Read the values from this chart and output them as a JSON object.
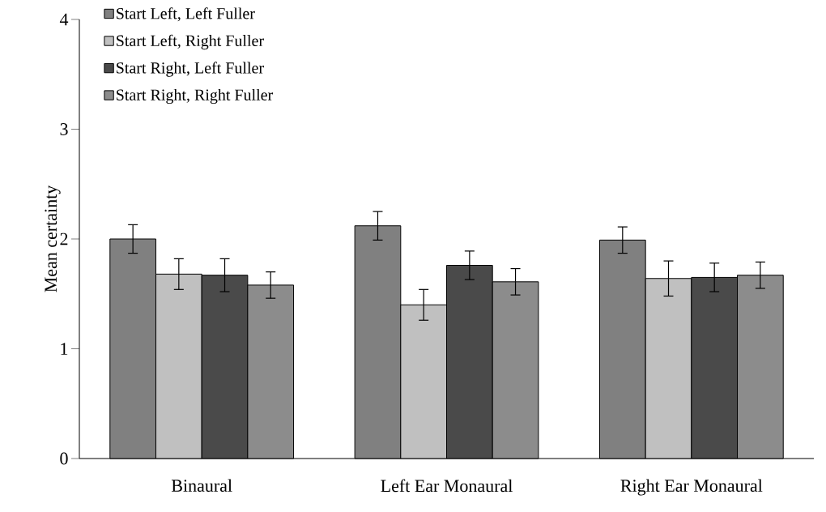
{
  "chart_data": {
    "type": "bar",
    "ylabel": "Mean certainty",
    "categories": [
      "Binaural",
      "Left Ear Monaural",
      "Right Ear Monaural"
    ],
    "series": [
      {
        "name": "Start Left, Left Fuller",
        "color": "#808080",
        "values": [
          2.0,
          2.12,
          1.99
        ],
        "errors": [
          0.13,
          0.13,
          0.12
        ]
      },
      {
        "name": "Start Left, Right Fuller",
        "color": "#c0c0c0",
        "values": [
          1.68,
          1.4,
          1.64
        ],
        "errors": [
          0.14,
          0.14,
          0.16
        ]
      },
      {
        "name": "Start Right, Left Fuller",
        "color": "#4a4a4a",
        "values": [
          1.67,
          1.76,
          1.65
        ],
        "errors": [
          0.15,
          0.13,
          0.13
        ]
      },
      {
        "name": "Start Right, Right Fuller",
        "color": "#8c8c8c",
        "values": [
          1.58,
          1.61,
          1.67
        ],
        "errors": [
          0.12,
          0.12,
          0.12
        ]
      }
    ],
    "ylim": [
      0,
      4
    ],
    "yticks": [
      0,
      1,
      2,
      3,
      4
    ],
    "grid": false,
    "legend": "top left"
  }
}
